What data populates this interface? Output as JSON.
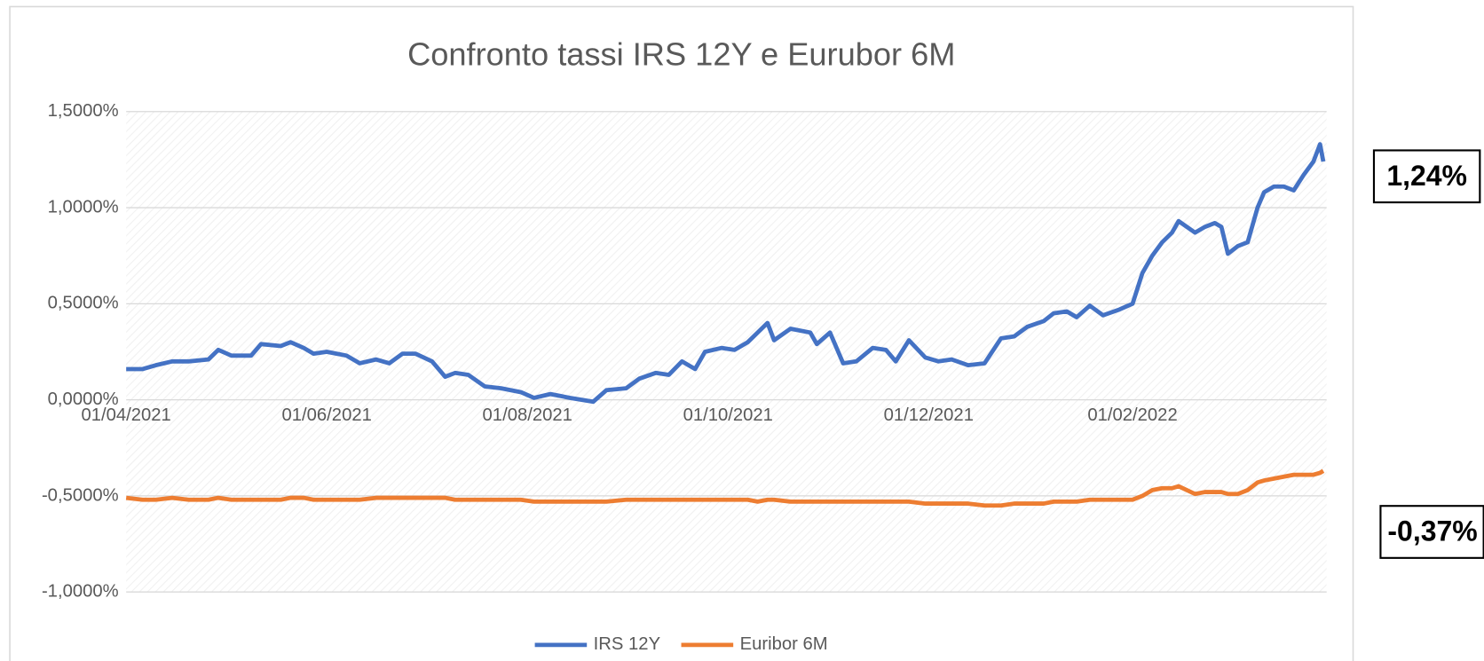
{
  "chart_data": {
    "type": "line",
    "title": "Confronto tassi IRS 12Y e Eurubor 6M",
    "x": [
      "01/04/2021",
      "06/04/2021",
      "10/04/2021",
      "15/04/2021",
      "20/04/2021",
      "26/04/2021",
      "29/04/2021",
      "03/05/2021",
      "09/05/2021",
      "12/05/2021",
      "18/05/2021",
      "21/05/2021",
      "25/05/2021",
      "28/05/2021",
      "01/06/2021",
      "07/06/2021",
      "11/06/2021",
      "16/06/2021",
      "20/06/2021",
      "24/06/2021",
      "28/06/2021",
      "03/07/2021",
      "07/07/2021",
      "10/07/2021",
      "14/07/2021",
      "19/07/2021",
      "24/07/2021",
      "30/07/2021",
      "03/08/2021",
      "08/08/2021",
      "14/08/2021",
      "21/08/2021",
      "25/08/2021",
      "31/08/2021",
      "04/09/2021",
      "09/09/2021",
      "13/09/2021",
      "17/09/2021",
      "21/09/2021",
      "24/09/2021",
      "29/09/2021",
      "03/10/2021",
      "07/10/2021",
      "10/10/2021",
      "13/10/2021",
      "15/10/2021",
      "20/10/2021",
      "26/10/2021",
      "28/10/2021",
      "01/11/2021",
      "05/11/2021",
      "09/11/2021",
      "14/11/2021",
      "18/11/2021",
      "21/11/2021",
      "25/11/2021",
      "30/11/2021",
      "04/12/2021",
      "08/12/2021",
      "13/12/2021",
      "18/12/2021",
      "23/12/2021",
      "27/12/2021",
      "31/12/2021",
      "05/01/2022",
      "08/01/2022",
      "12/01/2022",
      "15/01/2022",
      "19/01/2022",
      "23/01/2022",
      "28/01/2022",
      "01/02/2022",
      "04/02/2022",
      "07/02/2022",
      "10/02/2022",
      "13/02/2022",
      "15/02/2022",
      "20/02/2022",
      "23/02/2022",
      "26/02/2022",
      "28/02/2022",
      "02/03/2022",
      "05/03/2022",
      "08/03/2022",
      "11/03/2022",
      "13/03/2022",
      "16/03/2022",
      "19/03/2022",
      "22/03/2022",
      "25/03/2022",
      "28/03/2022",
      "30/03/2022",
      "31/03/2022"
    ],
    "series": [
      {
        "name": "IRS 12Y",
        "color": "#4472c4",
        "values": [
          0.16,
          0.16,
          0.18,
          0.2,
          0.2,
          0.21,
          0.26,
          0.23,
          0.23,
          0.29,
          0.28,
          0.3,
          0.27,
          0.24,
          0.25,
          0.23,
          0.19,
          0.21,
          0.19,
          0.24,
          0.24,
          0.2,
          0.12,
          0.14,
          0.13,
          0.07,
          0.06,
          0.04,
          0.01,
          0.03,
          0.01,
          -0.01,
          0.05,
          0.06,
          0.11,
          0.14,
          0.13,
          0.2,
          0.16,
          0.25,
          0.27,
          0.26,
          0.3,
          0.35,
          0.4,
          0.31,
          0.37,
          0.35,
          0.29,
          0.35,
          0.19,
          0.2,
          0.27,
          0.26,
          0.2,
          0.31,
          0.22,
          0.2,
          0.21,
          0.18,
          0.19,
          0.32,
          0.33,
          0.38,
          0.41,
          0.45,
          0.46,
          0.43,
          0.49,
          0.44,
          0.47,
          0.5,
          0.66,
          0.75,
          0.82,
          0.87,
          0.93,
          0.87,
          0.9,
          0.92,
          0.9,
          0.76,
          0.8,
          0.82,
          1.0,
          1.08,
          1.11,
          1.11,
          1.09,
          1.17,
          1.24,
          1.33,
          1.24
        ]
      },
      {
        "name": "Euribor 6M",
        "color": "#ed7d31",
        "values": [
          -0.51,
          -0.52,
          -0.52,
          -0.51,
          -0.52,
          -0.52,
          -0.51,
          -0.52,
          -0.52,
          -0.52,
          -0.52,
          -0.51,
          -0.51,
          -0.52,
          -0.52,
          -0.52,
          -0.52,
          -0.51,
          -0.51,
          -0.51,
          -0.51,
          -0.51,
          -0.51,
          -0.52,
          -0.52,
          -0.52,
          -0.52,
          -0.52,
          -0.53,
          -0.53,
          -0.53,
          -0.53,
          -0.53,
          -0.52,
          -0.52,
          -0.52,
          -0.52,
          -0.52,
          -0.52,
          -0.52,
          -0.52,
          -0.52,
          -0.52,
          -0.53,
          -0.52,
          -0.52,
          -0.53,
          -0.53,
          -0.53,
          -0.53,
          -0.53,
          -0.53,
          -0.53,
          -0.53,
          -0.53,
          -0.53,
          -0.54,
          -0.54,
          -0.54,
          -0.54,
          -0.55,
          -0.55,
          -0.54,
          -0.54,
          -0.54,
          -0.53,
          -0.53,
          -0.53,
          -0.52,
          -0.52,
          -0.52,
          -0.52,
          -0.5,
          -0.47,
          -0.46,
          -0.46,
          -0.45,
          -0.49,
          -0.48,
          -0.48,
          -0.48,
          -0.49,
          -0.49,
          -0.47,
          -0.43,
          -0.42,
          -0.41,
          -0.4,
          -0.39,
          -0.39,
          -0.39,
          -0.38,
          -0.37
        ]
      }
    ],
    "xlim": [
      "01/04/2021",
      "01/04/2022"
    ],
    "xticks": [
      "01/04/2021",
      "01/06/2021",
      "01/08/2021",
      "01/10/2021",
      "01/12/2021",
      "01/02/2022"
    ],
    "ylim": [
      -1,
      1.5
    ],
    "yticks": [
      {
        "value": 1.5,
        "label": "1,5000%"
      },
      {
        "value": 1,
        "label": "1,0000%"
      },
      {
        "value": 0.5,
        "label": "0,5000%"
      },
      {
        "value": 0,
        "label": "0,0000%"
      },
      {
        "value": -0.5,
        "label": "-0,5000%"
      },
      {
        "value": -1,
        "label": "-1,0000%"
      }
    ],
    "grid": true,
    "legend": "bottom",
    "annotations": [
      "1,24%",
      "-0,37%"
    ]
  }
}
